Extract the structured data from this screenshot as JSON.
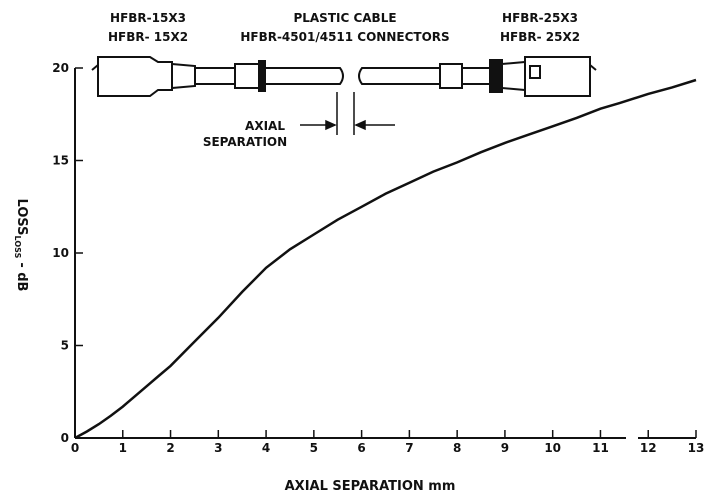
{
  "chart_data": {
    "type": "line",
    "xlabel": "AXIAL SEPARATION mm",
    "ylabel_main": "LOSS",
    "ylabel_sub": "LOSS",
    "ylabel_unit": "- dB",
    "xlim": [
      0,
      13
    ],
    "ylim": [
      0,
      20
    ],
    "x_ticks": [
      "0",
      "1",
      "2",
      "3",
      "4",
      "5",
      "6",
      "7",
      "8",
      "9",
      "10",
      "11",
      "12",
      "13"
    ],
    "y_ticks": [
      "0",
      "5",
      "10",
      "15",
      "20"
    ],
    "grid": false,
    "x_axis_break_after": 11.5,
    "series": [
      {
        "x": [
          0,
          0.25,
          0.5,
          0.75,
          1,
          1.25,
          1.5,
          1.75,
          2,
          2.5,
          3,
          3.5,
          4,
          4.5,
          5,
          5.5,
          6,
          6.5,
          7,
          7.5,
          8,
          8.5,
          9,
          9.5,
          10,
          10.5,
          11,
          11.4,
          12,
          12.5,
          13
        ],
        "y": [
          0,
          0.35,
          0.75,
          1.2,
          1.7,
          2.25,
          2.8,
          3.35,
          3.9,
          5.2,
          6.5,
          7.9,
          9.2,
          10.2,
          11.0,
          11.8,
          12.5,
          13.2,
          13.8,
          14.4,
          14.9,
          15.45,
          15.95,
          16.4,
          16.85,
          17.3,
          17.8,
          18.1,
          18.6,
          18.95,
          19.35
        ]
      }
    ],
    "diagram": {
      "left_label_1": "HFBR-15X3",
      "left_label_2": "HFBR- 15X2",
      "center_label_1": "PLASTIC CABLE",
      "center_label_2": "HFBR-4501/4511 CONNECTORS",
      "right_label_1": "HFBR-25X3",
      "right_label_2": "HFBR- 25X2",
      "gap_label_1": "AXIAL",
      "gap_label_2": "SEPARATION"
    }
  }
}
